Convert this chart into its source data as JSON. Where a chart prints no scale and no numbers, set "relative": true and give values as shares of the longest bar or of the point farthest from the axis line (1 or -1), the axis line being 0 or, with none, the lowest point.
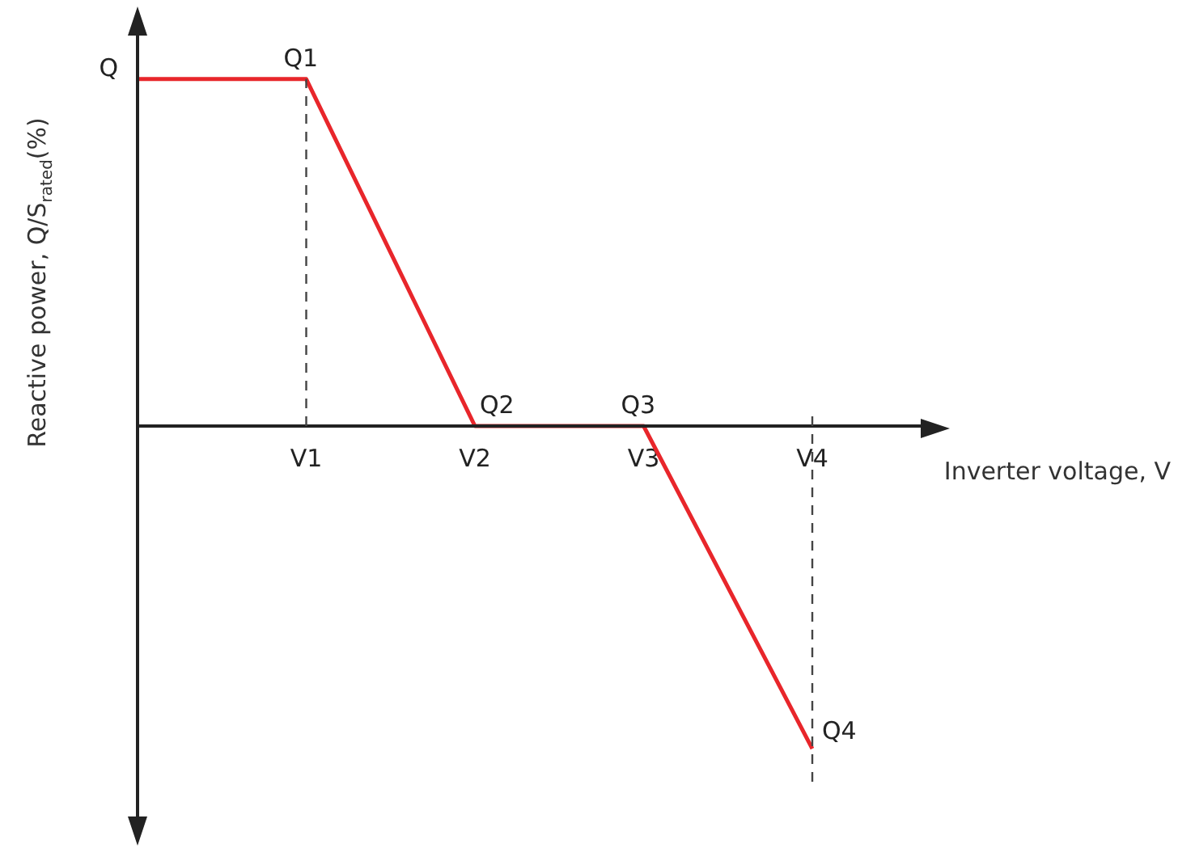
{
  "chart_data": {
    "type": "line",
    "relative": true,
    "xlabel": "Inverter voltage, V",
    "ylabel": "Reactive power, Q/S$_{rated}$(%)",
    "categories": [
      null,
      "V1",
      "V2",
      "V3",
      "V4"
    ],
    "series": [
      {
        "color": "#e8262b",
        "values": [
          1,
          1,
          0,
          0,
          -0.93
        ]
      }
    ],
    "annotations": [
      "Q",
      {
        "text": "Q1",
        "x": "V1",
        "y": 1
      },
      {
        "text": "Q2",
        "x": "V2",
        "y": 0
      },
      {
        "text": "Q3",
        "x": "V3",
        "y": 0
      },
      {
        "text": "Q4",
        "x": "V4",
        "y": -0.93
      }
    ],
    "ref_lines": [
      {
        "axis": "x",
        "value": "V1",
        "color": "#444444",
        "line_style": "dashed"
      },
      {
        "axis": "x",
        "value": "V4",
        "color": "#444444",
        "line_style": "dashed"
      }
    ],
    "grid": false,
    "legend": false,
    "marker": "none",
    "line_style": "solid"
  }
}
